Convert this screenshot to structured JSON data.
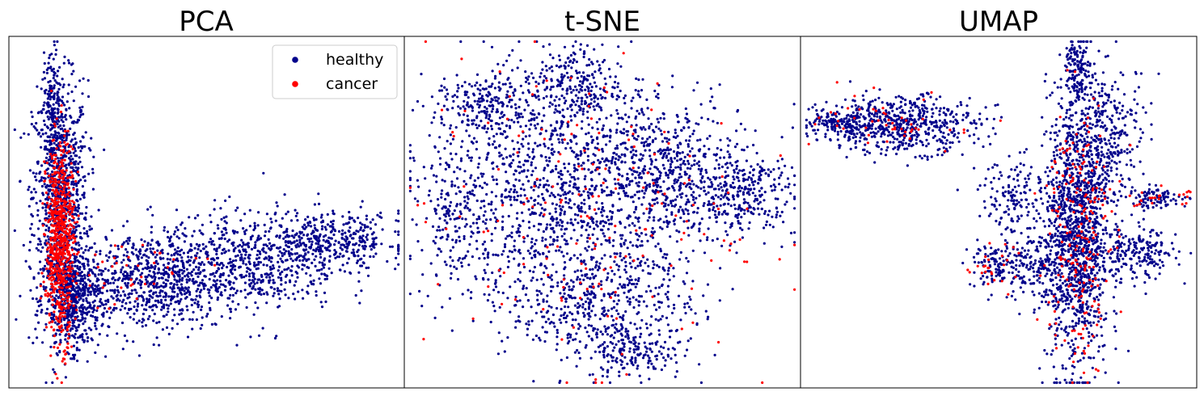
{
  "colors": {
    "healthy": "#00008b",
    "cancer": "#ff0000",
    "frame": "#000000",
    "legend_border": "#cccccc"
  },
  "legend": [
    {
      "label": "healthy",
      "color": "#00008b"
    },
    {
      "label": "cancer",
      "color": "#ff0000"
    }
  ],
  "chart_data": [
    {
      "type": "scatter",
      "title": "PCA",
      "xlabel": "",
      "ylabel": "",
      "ticks": false,
      "grid": false,
      "legend_position": "top-right",
      "series": [
        {
          "name": "healthy",
          "color": "#00008b",
          "clusters": [
            {
              "x": 0.13,
              "y": 0.55,
              "sx": 0.035,
              "sy": 0.16,
              "n": 950
            },
            {
              "x": 0.16,
              "y": 0.25,
              "sx": 0.035,
              "sy": 0.07,
              "n": 550
            },
            {
              "x": 0.35,
              "y": 0.3,
              "sx": 0.1,
              "sy": 0.07,
              "n": 700
            },
            {
              "x": 0.6,
              "y": 0.36,
              "sx": 0.12,
              "sy": 0.07,
              "n": 650
            },
            {
              "x": 0.82,
              "y": 0.42,
              "sx": 0.09,
              "sy": 0.04,
              "n": 350
            },
            {
              "x": 0.11,
              "y": 0.82,
              "sx": 0.012,
              "sy": 0.07,
              "n": 120
            }
          ]
        },
        {
          "name": "cancer",
          "color": "#ff0000",
          "clusters": [
            {
              "x": 0.13,
              "y": 0.42,
              "sx": 0.018,
              "sy": 0.14,
              "n": 700
            },
            {
              "x": 0.3,
              "y": 0.33,
              "sx": 0.1,
              "sy": 0.05,
              "n": 40
            }
          ]
        }
      ]
    },
    {
      "type": "scatter",
      "title": "t-SNE",
      "xlabel": "",
      "ylabel": "",
      "ticks": false,
      "grid": false,
      "series": [
        {
          "name": "healthy",
          "color": "#00008b",
          "clusters": [
            {
              "x": 0.38,
              "y": 0.55,
              "sx": 0.16,
              "sy": 0.16,
              "n": 1100
            },
            {
              "x": 0.65,
              "y": 0.62,
              "sx": 0.1,
              "sy": 0.1,
              "n": 550
            },
            {
              "x": 0.85,
              "y": 0.55,
              "sx": 0.07,
              "sy": 0.06,
              "n": 300
            },
            {
              "x": 0.5,
              "y": 0.25,
              "sx": 0.12,
              "sy": 0.09,
              "n": 500
            },
            {
              "x": 0.2,
              "y": 0.8,
              "sx": 0.06,
              "sy": 0.05,
              "n": 200
            },
            {
              "x": 0.42,
              "y": 0.85,
              "sx": 0.06,
              "sy": 0.06,
              "n": 250
            },
            {
              "x": 0.58,
              "y": 0.1,
              "sx": 0.06,
              "sy": 0.04,
              "n": 150
            },
            {
              "x": 0.12,
              "y": 0.5,
              "sx": 0.04,
              "sy": 0.1,
              "n": 150
            }
          ]
        },
        {
          "name": "cancer",
          "color": "#ff0000",
          "clusters": [
            {
              "x": 0.45,
              "y": 0.5,
              "sx": 0.2,
              "sy": 0.22,
              "n": 180
            }
          ]
        }
      ]
    },
    {
      "type": "scatter",
      "title": "UMAP",
      "xlabel": "",
      "ylabel": "",
      "ticks": false,
      "grid": false,
      "series": [
        {
          "name": "healthy",
          "color": "#00008b",
          "clusters": [
            {
              "x": 0.7,
              "y": 0.45,
              "sx": 0.04,
              "sy": 0.2,
              "n": 1300
            },
            {
              "x": 0.25,
              "y": 0.75,
              "sx": 0.1,
              "sy": 0.04,
              "n": 600
            },
            {
              "x": 0.08,
              "y": 0.75,
              "sx": 0.04,
              "sy": 0.015,
              "n": 100
            },
            {
              "x": 0.78,
              "y": 0.72,
              "sx": 0.05,
              "sy": 0.1,
              "n": 300
            },
            {
              "x": 0.6,
              "y": 0.35,
              "sx": 0.06,
              "sy": 0.05,
              "n": 250
            },
            {
              "x": 0.85,
              "y": 0.38,
              "sx": 0.05,
              "sy": 0.04,
              "n": 200
            },
            {
              "x": 0.55,
              "y": 0.55,
              "sx": 0.05,
              "sy": 0.05,
              "n": 150
            },
            {
              "x": 0.7,
              "y": 0.9,
              "sx": 0.015,
              "sy": 0.04,
              "n": 120
            },
            {
              "x": 0.9,
              "y": 0.54,
              "sx": 0.04,
              "sy": 0.015,
              "n": 80
            },
            {
              "x": 0.48,
              "y": 0.35,
              "sx": 0.03,
              "sy": 0.03,
              "n": 80
            }
          ]
        },
        {
          "name": "cancer",
          "color": "#ff0000",
          "clusters": [
            {
              "x": 0.7,
              "y": 0.45,
              "sx": 0.04,
              "sy": 0.2,
              "n": 220
            },
            {
              "x": 0.25,
              "y": 0.75,
              "sx": 0.1,
              "sy": 0.04,
              "n": 50
            },
            {
              "x": 0.9,
              "y": 0.54,
              "sx": 0.04,
              "sy": 0.015,
              "n": 25
            },
            {
              "x": 0.48,
              "y": 0.35,
              "sx": 0.03,
              "sy": 0.03,
              "n": 25
            }
          ]
        }
      ]
    }
  ]
}
